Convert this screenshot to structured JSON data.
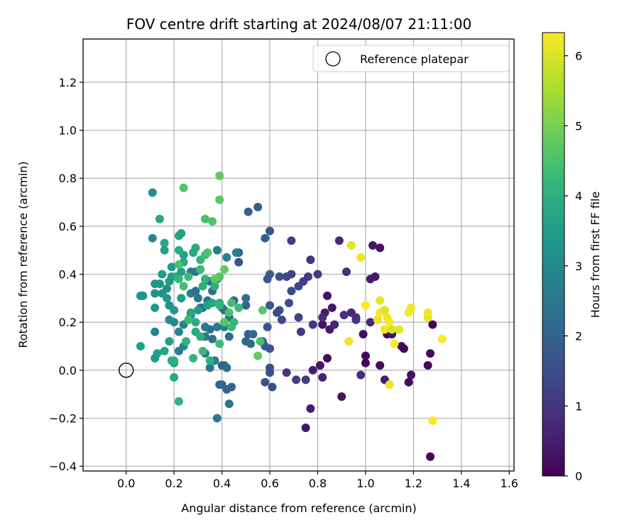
{
  "chart_data": {
    "type": "scatter",
    "title": "FOV centre drift starting at 2024/08/07 21:11:00",
    "xlabel": "Angular distance from reference (arcmin)",
    "ylabel": "Rotation from reference (arcmin)",
    "xlim": [
      -0.18,
      1.62
    ],
    "ylim": [
      -0.42,
      1.38
    ],
    "xticks": [
      0.0,
      0.2,
      0.4,
      0.6,
      0.8,
      1.0,
      1.2,
      1.4,
      1.6
    ],
    "xtick_labels": [
      "0.0",
      "0.2",
      "0.4",
      "0.6",
      "0.8",
      "1.0",
      "1.2",
      "1.4",
      "1.6"
    ],
    "yticks": [
      -0.4,
      -0.2,
      0.0,
      0.2,
      0.4,
      0.6,
      0.8,
      1.0,
      1.2
    ],
    "ytick_labels": [
      "−0.4",
      "−0.2",
      "0.0",
      "0.2",
      "0.4",
      "0.6",
      "0.8",
      "1.0",
      "1.2"
    ],
    "grid": true,
    "legend_position": "top-right",
    "legend": [
      {
        "label": "Reference platepar",
        "marker": "open-circle"
      }
    ],
    "reference_point": {
      "x": 0.0,
      "y": 0.0
    },
    "colorbar": {
      "label": "Hours from first FF file",
      "range": [
        0,
        6.33
      ],
      "ticks": [
        0,
        1,
        2,
        3,
        4,
        5,
        6
      ],
      "tick_labels": [
        "0",
        "1",
        "2",
        "3",
        "4",
        "5",
        "6"
      ],
      "colormap": "viridis"
    },
    "colormap_stops": [
      "#440154",
      "#482878",
      "#3e4a89",
      "#31688e",
      "#26828e",
      "#1f9e89",
      "#35b779",
      "#6ece58",
      "#b5de2b",
      "#fde725"
    ],
    "points": [
      [
        0.84,
        0.31,
        0.3
      ],
      [
        0.86,
        0.26,
        0.4
      ],
      [
        0.83,
        0.24,
        0.5
      ],
      [
        0.85,
        0.17,
        0.4
      ],
      [
        0.82,
        0.19,
        0.3
      ],
      [
        0.84,
        0.05,
        0.2
      ],
      [
        0.81,
        0.02,
        0.4
      ],
      [
        0.78,
        0.0,
        0.5
      ],
      [
        0.82,
        -0.03,
        0.6
      ],
      [
        0.77,
        -0.16,
        0.5
      ],
      [
        0.75,
        -0.24,
        0.4
      ],
      [
        0.9,
        -0.11,
        0.3
      ],
      [
        0.89,
        0.54,
        0.7
      ],
      [
        0.92,
        0.41,
        0.8
      ],
      [
        0.87,
        0.19,
        0.7
      ],
      [
        0.91,
        0.23,
        0.9
      ],
      [
        0.94,
        0.24,
        0.7
      ],
      [
        0.96,
        0.21,
        1.0
      ],
      [
        1.03,
        0.52,
        0.4
      ],
      [
        1.06,
        0.51,
        0.3
      ],
      [
        1.02,
        0.38,
        0.5
      ],
      [
        1.04,
        0.39,
        0.4
      ],
      [
        0.99,
        0.15,
        0.2
      ],
      [
        1.0,
        0.06,
        0.2
      ],
      [
        1.0,
        0.03,
        0.1
      ],
      [
        1.06,
        0.02,
        0.2
      ],
      [
        1.09,
        0.15,
        0.1
      ],
      [
        1.11,
        0.15,
        0.3
      ],
      [
        1.15,
        0.1,
        0.2
      ],
      [
        1.16,
        0.09,
        0.1
      ],
      [
        1.19,
        -0.02,
        0.3
      ],
      [
        1.18,
        -0.05,
        0.2
      ],
      [
        1.27,
        0.07,
        0.2
      ],
      [
        1.26,
        0.02,
        0.1
      ],
      [
        1.28,
        0.19,
        0.1
      ],
      [
        1.27,
        -0.36,
        0.1
      ],
      [
        1.02,
        0.2,
        0.7
      ],
      [
        0.98,
        -0.02,
        0.8
      ],
      [
        1.08,
        -0.04,
        0.5
      ],
      [
        0.96,
        0.22,
        0.9
      ],
      [
        0.69,
        0.54,
        1.2
      ],
      [
        0.77,
        0.46,
        1.0
      ],
      [
        0.8,
        0.4,
        1.1
      ],
      [
        0.67,
        0.39,
        1.4
      ],
      [
        0.69,
        0.4,
        1.3
      ],
      [
        0.74,
        0.37,
        1.2
      ],
      [
        0.76,
        0.39,
        1.1
      ],
      [
        0.72,
        0.35,
        1.3
      ],
      [
        0.69,
        0.33,
        1.5
      ],
      [
        0.64,
        0.39,
        1.6
      ],
      [
        0.6,
        0.4,
        1.8
      ],
      [
        0.59,
        0.38,
        1.7
      ],
      [
        0.6,
        0.58,
        1.7
      ],
      [
        0.58,
        0.55,
        1.9
      ],
      [
        0.55,
        0.68,
        1.8
      ],
      [
        0.51,
        0.66,
        1.9
      ],
      [
        0.47,
        0.49,
        1.8
      ],
      [
        0.47,
        0.45,
        1.7
      ],
      [
        0.68,
        0.28,
        1.5
      ],
      [
        0.64,
        0.25,
        1.6
      ],
      [
        0.6,
        0.27,
        1.7
      ],
      [
        0.63,
        0.24,
        1.5
      ],
      [
        0.65,
        0.21,
        1.4
      ],
      [
        0.72,
        0.22,
        1.3
      ],
      [
        0.73,
        0.16,
        1.1
      ],
      [
        0.78,
        0.19,
        1.0
      ],
      [
        0.82,
        0.22,
        0.8
      ],
      [
        0.59,
        0.18,
        1.6
      ],
      [
        0.57,
        0.12,
        1.8
      ],
      [
        0.58,
        0.1,
        1.9
      ],
      [
        0.6,
        0.09,
        1.7
      ],
      [
        0.6,
        0.01,
        1.6
      ],
      [
        0.6,
        -0.01,
        1.5
      ],
      [
        0.58,
        -0.05,
        1.6
      ],
      [
        0.61,
        -0.07,
        1.5
      ],
      [
        0.67,
        -0.01,
        1.0
      ],
      [
        0.71,
        -0.04,
        1.2
      ],
      [
        0.75,
        -0.04,
        1.1
      ],
      [
        0.51,
        0.15,
        2.0
      ],
      [
        0.53,
        0.15,
        2.1
      ],
      [
        0.5,
        0.12,
        2.0
      ],
      [
        0.52,
        0.11,
        2.2
      ],
      [
        0.5,
        0.27,
        2.0
      ],
      [
        0.5,
        0.3,
        2.3
      ],
      [
        0.45,
        0.29,
        2.1
      ],
      [
        0.4,
        0.26,
        2.2
      ],
      [
        0.41,
        0.25,
        2.4
      ],
      [
        0.43,
        0.22,
        2.3
      ],
      [
        0.43,
        0.14,
        2.2
      ],
      [
        0.38,
        0.18,
        2.6
      ],
      [
        0.41,
        0.18,
        2.8
      ],
      [
        0.41,
        0.02,
        2.1
      ],
      [
        0.4,
        0.02,
        2.0
      ],
      [
        0.42,
        0.01,
        2.2
      ],
      [
        0.39,
        -0.06,
        2.0
      ],
      [
        0.4,
        -0.06,
        2.1
      ],
      [
        0.42,
        -0.08,
        2.0
      ],
      [
        0.44,
        -0.07,
        2.1
      ],
      [
        0.43,
        -0.14,
        2.4
      ],
      [
        0.38,
        -0.2,
        2.5
      ],
      [
        0.35,
        0.01,
        2.5
      ],
      [
        0.37,
        0.04,
        2.6
      ],
      [
        0.33,
        0.07,
        2.7
      ],
      [
        0.33,
        0.14,
        2.5
      ],
      [
        0.36,
        0.13,
        2.4
      ],
      [
        0.35,
        0.17,
        2.3
      ],
      [
        0.33,
        0.18,
        2.6
      ],
      [
        0.32,
        0.26,
        2.5
      ],
      [
        0.34,
        0.29,
        2.4
      ],
      [
        0.36,
        0.33,
        2.3
      ],
      [
        0.35,
        0.37,
        2.5
      ],
      [
        0.38,
        0.38,
        2.6
      ],
      [
        0.38,
        0.5,
        2.7
      ],
      [
        0.42,
        0.47,
        2.8
      ],
      [
        0.46,
        0.49,
        2.7
      ],
      [
        0.29,
        0.41,
        2.6
      ],
      [
        0.27,
        0.41,
        2.5
      ],
      [
        0.27,
        0.32,
        2.6
      ],
      [
        0.29,
        0.33,
        2.4
      ],
      [
        0.3,
        0.3,
        2.5
      ],
      [
        0.31,
        0.26,
        2.4
      ],
      [
        0.27,
        0.23,
        2.5
      ],
      [
        0.24,
        0.19,
        2.8
      ],
      [
        0.24,
        0.1,
        2.9
      ],
      [
        0.22,
        0.08,
        2.7
      ],
      [
        0.22,
        0.16,
        2.8
      ],
      [
        0.18,
        0.21,
        3.0
      ],
      [
        0.2,
        0.2,
        3.1
      ],
      [
        0.2,
        0.25,
        3.3
      ],
      [
        0.18,
        0.27,
        3.2
      ],
      [
        0.17,
        0.3,
        3.4
      ],
      [
        0.15,
        0.32,
        3.3
      ],
      [
        0.17,
        0.34,
        3.2
      ],
      [
        0.19,
        0.39,
        3.5
      ],
      [
        0.21,
        0.39,
        3.7
      ],
      [
        0.23,
        0.41,
        3.6
      ],
      [
        0.24,
        0.45,
        3.8
      ],
      [
        0.24,
        0.48,
        3.6
      ],
      [
        0.22,
        0.5,
        3.9
      ],
      [
        0.22,
        0.56,
        3.8
      ],
      [
        0.23,
        0.57,
        3.6
      ],
      [
        0.19,
        0.43,
        3.4
      ],
      [
        0.15,
        0.4,
        3.5
      ],
      [
        0.14,
        0.36,
        3.3
      ],
      [
        0.12,
        0.36,
        3.4
      ],
      [
        0.12,
        0.32,
        3.2
      ],
      [
        0.12,
        0.26,
        3.5
      ],
      [
        0.12,
        0.16,
        2.9
      ],
      [
        0.11,
        0.74,
        3.1
      ],
      [
        0.11,
        0.55,
        3.0
      ],
      [
        0.14,
        0.63,
        3.7
      ],
      [
        0.16,
        0.5,
        3.6
      ],
      [
        0.16,
        0.53,
        3.8
      ],
      [
        0.18,
        0.37,
        3.5
      ],
      [
        0.06,
        0.31,
        3.4
      ],
      [
        0.07,
        0.31,
        3.3
      ],
      [
        0.06,
        0.1,
        3.5
      ],
      [
        0.13,
        0.07,
        3.6
      ],
      [
        0.12,
        0.05,
        3.4
      ],
      [
        0.16,
        0.08,
        3.7
      ],
      [
        0.19,
        0.04,
        3.8
      ],
      [
        0.2,
        0.03,
        3.6
      ],
      [
        0.2,
        0.04,
        4.0
      ],
      [
        0.2,
        -0.03,
        3.8
      ],
      [
        0.22,
        -0.13,
        4.1
      ],
      [
        0.28,
        0.05,
        4.2
      ],
      [
        0.32,
        0.08,
        4.3
      ],
      [
        0.35,
        0.04,
        4.0
      ],
      [
        0.39,
        0.11,
        4.3
      ],
      [
        0.29,
        0.16,
        3.9
      ],
      [
        0.31,
        0.14,
        4.0
      ],
      [
        0.25,
        0.12,
        4.1
      ],
      [
        0.29,
        0.2,
        3.9
      ],
      [
        0.27,
        0.24,
        3.7
      ],
      [
        0.3,
        0.25,
        3.5
      ],
      [
        0.34,
        0.27,
        3.6
      ],
      [
        0.36,
        0.28,
        3.8
      ],
      [
        0.39,
        0.28,
        3.9
      ],
      [
        0.44,
        0.28,
        4.4
      ],
      [
        0.45,
        0.2,
        4.2
      ],
      [
        0.44,
        0.18,
        4.3
      ],
      [
        0.39,
        0.27,
        4.1
      ],
      [
        0.37,
        0.35,
        4.0
      ],
      [
        0.33,
        0.38,
        4.1
      ],
      [
        0.31,
        0.42,
        4.3
      ],
      [
        0.31,
        0.46,
        4.2
      ],
      [
        0.33,
        0.48,
        4.4
      ],
      [
        0.34,
        0.49,
        4.5
      ],
      [
        0.32,
        0.35,
        4.0
      ],
      [
        0.29,
        0.51,
        3.9
      ],
      [
        0.28,
        0.49,
        3.8
      ],
      [
        0.26,
        0.39,
        4.3
      ],
      [
        0.24,
        0.35,
        4.4
      ],
      [
        0.22,
        0.38,
        4.2
      ],
      [
        0.22,
        0.44,
        4.5
      ],
      [
        0.39,
        0.39,
        4.6
      ],
      [
        0.41,
        0.42,
        4.8
      ],
      [
        0.36,
        0.62,
        4.6
      ],
      [
        0.33,
        0.63,
        4.5
      ],
      [
        0.39,
        0.71,
        4.7
      ],
      [
        0.39,
        0.81,
        4.8
      ],
      [
        0.24,
        0.76,
        4.6
      ],
      [
        0.55,
        0.06,
        4.8
      ],
      [
        0.57,
        0.25,
        4.7
      ],
      [
        0.56,
        0.12,
        4.4
      ],
      [
        0.41,
        0.2,
        4.6
      ],
      [
        0.43,
        0.24,
        4.5
      ],
      [
        0.47,
        0.26,
        4.3
      ],
      [
        0.37,
        0.38,
        4.7
      ],
      [
        0.18,
        0.12,
        3.6
      ],
      [
        0.26,
        0.21,
        4.3
      ],
      [
        0.23,
        0.3,
        3.5
      ],
      [
        0.94,
        0.52,
        6.1
      ],
      [
        0.98,
        0.47,
        6.2
      ],
      [
        1.0,
        0.27,
        6.3
      ],
      [
        0.93,
        0.12,
        6.2
      ],
      [
        1.06,
        0.29,
        6.1
      ],
      [
        1.06,
        0.24,
        6.3
      ],
      [
        1.08,
        0.25,
        6.0
      ],
      [
        1.09,
        0.22,
        6.2
      ],
      [
        1.1,
        0.2,
        6.3
      ],
      [
        1.05,
        0.21,
        6.1
      ],
      [
        1.08,
        0.17,
        6.2
      ],
      [
        1.11,
        0.17,
        6.0
      ],
      [
        1.12,
        0.11,
        6.3
      ],
      [
        1.14,
        0.17,
        6.1
      ],
      [
        1.19,
        0.26,
        6.2
      ],
      [
        1.18,
        0.24,
        6.3
      ],
      [
        1.26,
        0.22,
        6.1
      ],
      [
        1.26,
        0.24,
        6.2
      ],
      [
        1.32,
        0.13,
        6.3
      ],
      [
        1.1,
        -0.06,
        6.2
      ],
      [
        1.28,
        -0.21,
        6.3
      ]
    ]
  }
}
